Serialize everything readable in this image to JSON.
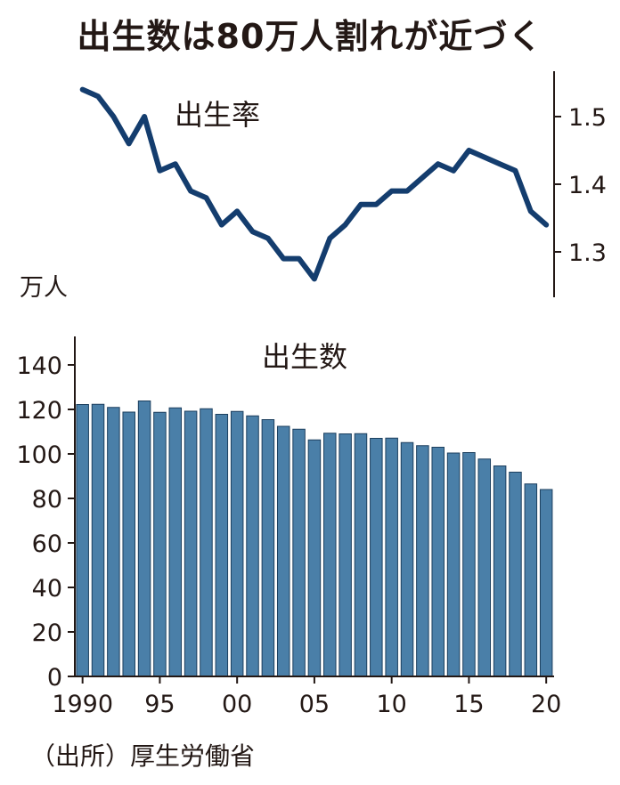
{
  "title": "出生数は80万人割れが近づく",
  "source": "（出所）厚生労働省",
  "chart_data": [
    {
      "type": "line",
      "series": [
        {
          "name": "出生率",
          "x": [
            1990,
            1991,
            1992,
            1993,
            1994,
            1995,
            1996,
            1997,
            1998,
            1999,
            2000,
            2001,
            2002,
            2003,
            2004,
            2005,
            2006,
            2007,
            2008,
            2009,
            2010,
            2011,
            2012,
            2013,
            2014,
            2015,
            2016,
            2017,
            2018,
            2019,
            2020
          ],
          "values": [
            1.54,
            1.53,
            1.5,
            1.46,
            1.5,
            1.42,
            1.43,
            1.39,
            1.38,
            1.34,
            1.36,
            1.33,
            1.32,
            1.29,
            1.29,
            1.26,
            1.32,
            1.34,
            1.37,
            1.37,
            1.39,
            1.39,
            1.41,
            1.43,
            1.42,
            1.45,
            1.44,
            1.43,
            1.42,
            1.36,
            1.34
          ]
        }
      ],
      "yticks": [
        1.3,
        1.4,
        1.5
      ],
      "ylim": [
        1.22,
        1.59
      ],
      "axis_side": "right"
    },
    {
      "type": "bar",
      "ylabel": "万人",
      "series": [
        {
          "name": "出生数",
          "x": [
            1990,
            1991,
            1992,
            1993,
            1994,
            1995,
            1996,
            1997,
            1998,
            1999,
            2000,
            2001,
            2002,
            2003,
            2004,
            2005,
            2006,
            2007,
            2008,
            2009,
            2010,
            2011,
            2012,
            2013,
            2014,
            2015,
            2016,
            2017,
            2018,
            2019,
            2020
          ],
          "values": [
            122.2,
            122.3,
            120.9,
            118.8,
            123.8,
            118.7,
            120.7,
            119.2,
            120.3,
            117.8,
            119.1,
            117.1,
            115.4,
            112.4,
            111.1,
            106.3,
            109.3,
            109.0,
            109.1,
            107.0,
            107.1,
            105.1,
            103.7,
            103.0,
            100.4,
            100.6,
            97.7,
            94.6,
            91.8,
            86.5,
            84.0
          ]
        }
      ],
      "yticks": [
        0,
        20,
        40,
        60,
        80,
        100,
        120,
        140
      ],
      "ylim": [
        0,
        150
      ],
      "xticks": [
        "1990",
        "95",
        "00",
        "05",
        "10",
        "15",
        "20"
      ],
      "bar_color": "#4a7fa8",
      "line_color": "#143d6e"
    }
  ]
}
